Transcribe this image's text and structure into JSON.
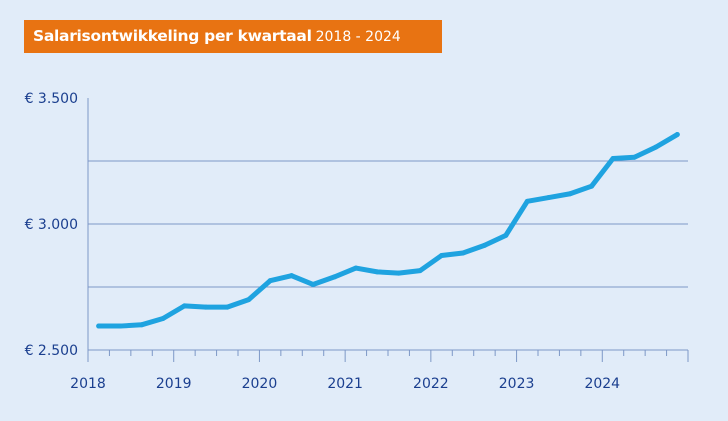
{
  "chart_data": {
    "type": "line",
    "title": "Salarisontwikkeling per kwartaal",
    "subtitle": "2018 - 2024",
    "xlabel": "",
    "ylabel": "",
    "x_ticks": [
      "2018",
      "2019",
      "2020",
      "2021",
      "2022",
      "2023",
      "2024"
    ],
    "y_ticks": [
      {
        "value": 2500,
        "label": "€ 2.500"
      },
      {
        "value": 3000,
        "label": "€ 3.000"
      },
      {
        "value": 3500,
        "label": "€ 3.500"
      }
    ],
    "gridlines": [
      2750,
      3000,
      3250
    ],
    "xlim": [
      2018,
      2025
    ],
    "ylim": [
      2500,
      3500
    ],
    "x": [
      "2018 Q1",
      "2018 Q2",
      "2018 Q3",
      "2018 Q4",
      "2019 Q1",
      "2019 Q2",
      "2019 Q3",
      "2019 Q4",
      "2020 Q1",
      "2020 Q2",
      "2020 Q3",
      "2020 Q4",
      "2021 Q1",
      "2021 Q2",
      "2021 Q3",
      "2021 Q4",
      "2022 Q1",
      "2022 Q2",
      "2022 Q3",
      "2022 Q4",
      "2023 Q1",
      "2023 Q2",
      "2023 Q3",
      "2023 Q4",
      "2024 Q1",
      "2024 Q2",
      "2024 Q3",
      "2024 Q4"
    ],
    "values": [
      2595,
      2595,
      2600,
      2625,
      2675,
      2670,
      2670,
      2700,
      2775,
      2795,
      2760,
      2790,
      2825,
      2810,
      2805,
      2815,
      2875,
      2885,
      2915,
      2955,
      3090,
      3105,
      3120,
      3150,
      3260,
      3265,
      3305,
      3355
    ],
    "colors": {
      "line": "#1fa3e0",
      "axis": "#7d97c7",
      "text": "#1b3f8f",
      "title_bg": "#e87312",
      "background": "#e1ecf9"
    }
  }
}
